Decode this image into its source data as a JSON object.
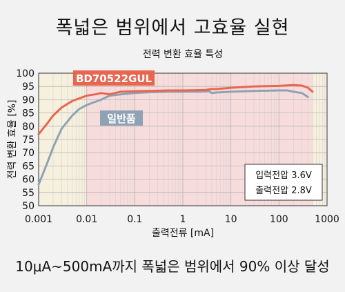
{
  "headline": "폭넓은 범위에서 고효율 실현",
  "footer": "10μA~500mA까지 폭넓은 범위에서 90% 이상 달성",
  "chart_data": {
    "type": "line",
    "title": "전력 변환 효율 특성",
    "xlabel": "출력전류 [mA]",
    "ylabel": "전력 변환 효율 [%]",
    "xscale": "log",
    "xlim": [
      0.001,
      1000
    ],
    "ylim": [
      50,
      100
    ],
    "xticks": [
      0.001,
      0.01,
      0.1,
      1,
      10,
      100,
      1000
    ],
    "xtick_labels": [
      "0.001",
      "0.01",
      "0.1",
      "1",
      "10",
      "100",
      "1000"
    ],
    "yticks": [
      50,
      55,
      60,
      65,
      70,
      75,
      80,
      85,
      90,
      95,
      100
    ],
    "ytick_labels": [
      "50",
      "55",
      "60",
      "65",
      "70",
      "75",
      "80",
      "85",
      "90",
      "95",
      "100"
    ],
    "grid": true,
    "highlight_range_mA": [
      0.01,
      500
    ],
    "series": [
      {
        "name": "BD70522GUL",
        "color": "#e8654f",
        "x": [
          0.001,
          0.0015,
          0.002,
          0.003,
          0.005,
          0.007,
          0.01,
          0.015,
          0.02,
          0.03,
          0.05,
          0.1,
          0.2,
          0.5,
          1,
          2,
          3,
          4,
          5,
          10,
          30,
          100,
          200,
          300,
          400,
          500
        ],
        "y": [
          77,
          81,
          84,
          87,
          89.5,
          90.5,
          91.5,
          92,
          92.5,
          92,
          93,
          93.2,
          93.3,
          93.5,
          93.5,
          93.6,
          93.7,
          94,
          94,
          94.5,
          95,
          95.2,
          95.5,
          95.3,
          94.5,
          93
        ]
      },
      {
        "name": "일반품",
        "color": "#8fa2b3",
        "x": [
          0.001,
          0.0015,
          0.002,
          0.003,
          0.005,
          0.007,
          0.01,
          0.015,
          0.02,
          0.03,
          0.05,
          0.1,
          0.2,
          0.5,
          1,
          2,
          3,
          3.5,
          4,
          5,
          10,
          30,
          100,
          150,
          200,
          300,
          400
        ],
        "y": [
          58,
          66,
          72,
          79,
          84,
          86.5,
          88,
          89.2,
          90,
          91.5,
          92,
          92.5,
          92.8,
          93,
          93,
          93,
          93.1,
          93.2,
          92.5,
          92.7,
          93,
          93.3,
          93.5,
          93.5,
          93,
          92.5,
          91
        ]
      }
    ],
    "legend_labels": {
      "red": "BD70522GUL",
      "gray": "일반품"
    },
    "conditions": [
      "입력전압 3.6V",
      "출력전압 2.8V"
    ]
  }
}
